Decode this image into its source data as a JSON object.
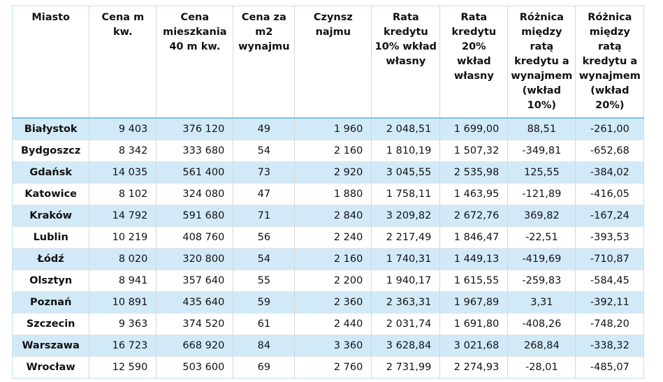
{
  "table": {
    "header": [
      "Miasto",
      "Cena m kw.",
      "Cena mieszkania 40 m kw.",
      "Cena za m2 wynajmu",
      "Czynsz najmu",
      "Rata kredytu 10% wkład własny",
      "Rata kredytu 20% wkład własny",
      "Różnica między ratą kredytu a wynajmem (wkład 10%)",
      "Różnica między ratą kredytu a wynajmem (wkład 20%)"
    ],
    "rows": [
      [
        "Białystok",
        "9 403",
        "376 120",
        "49",
        "1 960",
        "2 048,51",
        "1 699,00",
        "88,51",
        "-261,00"
      ],
      [
        "Bydgoszcz",
        "8 342",
        "333 680",
        "54",
        "2 160",
        "1 810,19",
        "1 507,32",
        "-349,81",
        "-652,68"
      ],
      [
        "Gdańsk",
        "14 035",
        "561 400",
        "73",
        "2 920",
        "3 045,55",
        "2 535,98",
        "125,55",
        "-384,02"
      ],
      [
        "Katowice",
        "8 102",
        "324 080",
        "47",
        "1 880",
        "1 758,11",
        "1 463,95",
        "-121,89",
        "-416,05"
      ],
      [
        "Kraków",
        "14 792",
        "591 680",
        "71",
        "2 840",
        "3 209,82",
        "2 672,76",
        "369,82",
        "-167,24"
      ],
      [
        "Lublin",
        "10 219",
        "408 760",
        "56",
        "2 240",
        "2 217,49",
        "1 846,47",
        "-22,51",
        "-393,53"
      ],
      [
        "Łódź",
        "8 020",
        "320 800",
        "54",
        "2 160",
        "1 740,31",
        "1 449,13",
        "-419,69",
        "-710,87"
      ],
      [
        "Olsztyn",
        "8 941",
        "357 640",
        "55",
        "2 200",
        "1 940,17",
        "1 615,55",
        "-259,83",
        "-584,45"
      ],
      [
        "Poznań",
        "10 891",
        "435 640",
        "59",
        "2 360",
        "2 363,31",
        "1 967,89",
        "3,31",
        "-392,11"
      ],
      [
        "Szczecin",
        "9 363",
        "374 520",
        "61",
        "2 440",
        "2 031,74",
        "1 691,80",
        "-408,26",
        "-748,20"
      ],
      [
        "Warszawa",
        "16 723",
        "668 920",
        "84",
        "3 360",
        "3 628,84",
        "3 021,68",
        "268,84",
        "-338,32"
      ],
      [
        "Wrocław",
        "12 590",
        "503 600",
        "69",
        "2 760",
        "2 731,99",
        "2 274,93",
        "-28,01",
        "-485,07"
      ]
    ]
  }
}
